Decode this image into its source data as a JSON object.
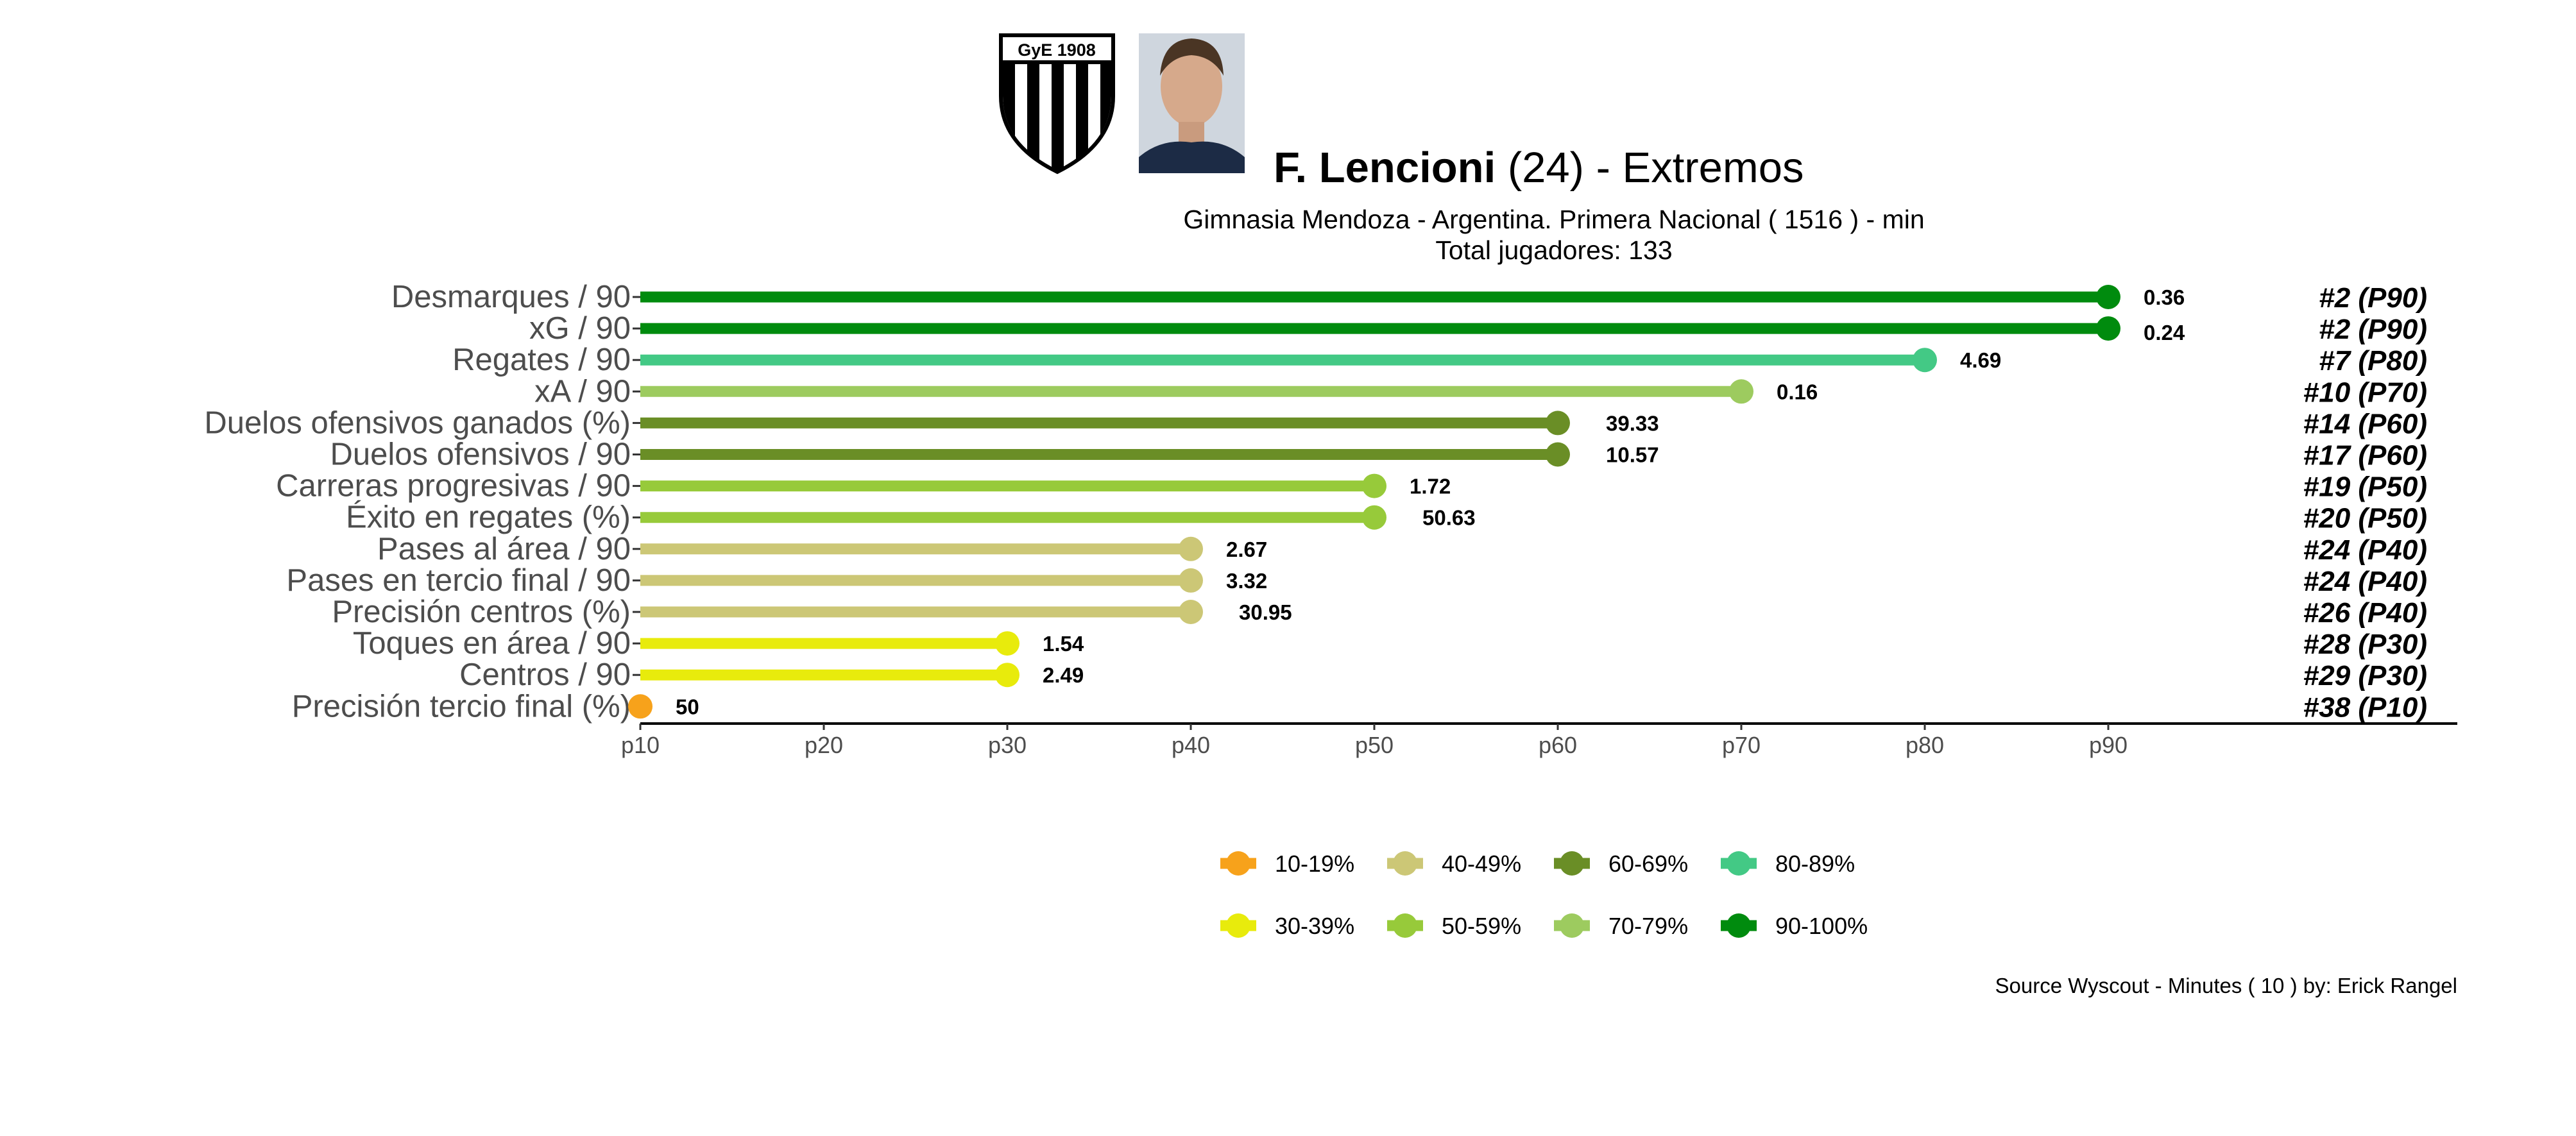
{
  "header": {
    "crest_text": "GyE 1908",
    "player_name": "F. Lencioni",
    "title_rest": " (24) -  Extremos",
    "subtitle_line1": "Gimnasia Mendoza  -  Argentina. Primera Nacional  ( 1516 ) - min",
    "subtitle_line2": "Total jugadores:  133"
  },
  "caption": "Source Wyscout - Minutes ( 10 ) by: Erick Rangel",
  "chart_data": {
    "type": "lollipop",
    "x_axis": {
      "ticks": [
        "p10",
        "p20",
        "p30",
        "p40",
        "p50",
        "p60",
        "p70",
        "p80",
        "p90"
      ],
      "range": [
        10,
        100
      ]
    },
    "rows": [
      {
        "label": "Desmarques / 90",
        "percentile": 90,
        "value": "0.36",
        "rank": "#2 (P90)",
        "color": "#008B0E"
      },
      {
        "label": "xG / 90",
        "percentile": 90,
        "value": "0.24",
        "rank": "#2 (P90)",
        "color": "#008B0E"
      },
      {
        "label": "Regates / 90",
        "percentile": 80,
        "value": "4.69",
        "rank": "#7 (P80)",
        "color": "#43C985"
      },
      {
        "label": "xA / 90",
        "percentile": 70,
        "value": "0.16",
        "rank": "#10 (P70)",
        "color": "#9DCB5F"
      },
      {
        "label": "Duelos ofensivos ganados (%)",
        "percentile": 60,
        "value": "39.33",
        "rank": "#14 (P60)",
        "color": "#6A8E26"
      },
      {
        "label": "Duelos ofensivos / 90",
        "percentile": 60,
        "value": "10.57",
        "rank": "#17 (P60)",
        "color": "#6A8E26"
      },
      {
        "label": "Carreras progresivas / 90",
        "percentile": 50,
        "value": "1.72",
        "rank": "#19 (P50)",
        "color": "#97CA3A"
      },
      {
        "label": "Éxito en regates (%)",
        "percentile": 50,
        "value": "50.63",
        "rank": "#20 (P50)",
        "color": "#97CA3A"
      },
      {
        "label": "Pases al área / 90",
        "percentile": 40,
        "value": "2.67",
        "rank": "#24 (P40)",
        "color": "#CCC776"
      },
      {
        "label": "Pases en tercio final / 90",
        "percentile": 40,
        "value": "3.32",
        "rank": "#24 (P40)",
        "color": "#CCC776"
      },
      {
        "label": "Precisión centros (%)",
        "percentile": 40,
        "value": "30.95",
        "rank": "#26 (P40)",
        "color": "#CCC776"
      },
      {
        "label": "Toques en área / 90",
        "percentile": 30,
        "value": "1.54",
        "rank": "#28 (P30)",
        "color": "#E8EB0C"
      },
      {
        "label": "Centros / 90",
        "percentile": 30,
        "value": "2.49",
        "rank": "#29 (P30)",
        "color": "#E8EB0C"
      },
      {
        "label": "Precisión tercio final (%)",
        "percentile": 10,
        "value": "50",
        "rank": "#38 (P10)",
        "color": "#F7A21B"
      }
    ],
    "legend": [
      {
        "label": "10-19%",
        "color": "#F7A21B"
      },
      {
        "label": "40-49%",
        "color": "#CCC776"
      },
      {
        "label": "60-69%",
        "color": "#6A8E26"
      },
      {
        "label": "80-89%",
        "color": "#43C985"
      },
      {
        "label": "30-39%",
        "color": "#E8EB0C"
      },
      {
        "label": "50-59%",
        "color": "#97CA3A"
      },
      {
        "label": "70-79%",
        "color": "#9DCB5F"
      },
      {
        "label": "90-100%",
        "color": "#008B0E"
      }
    ]
  }
}
